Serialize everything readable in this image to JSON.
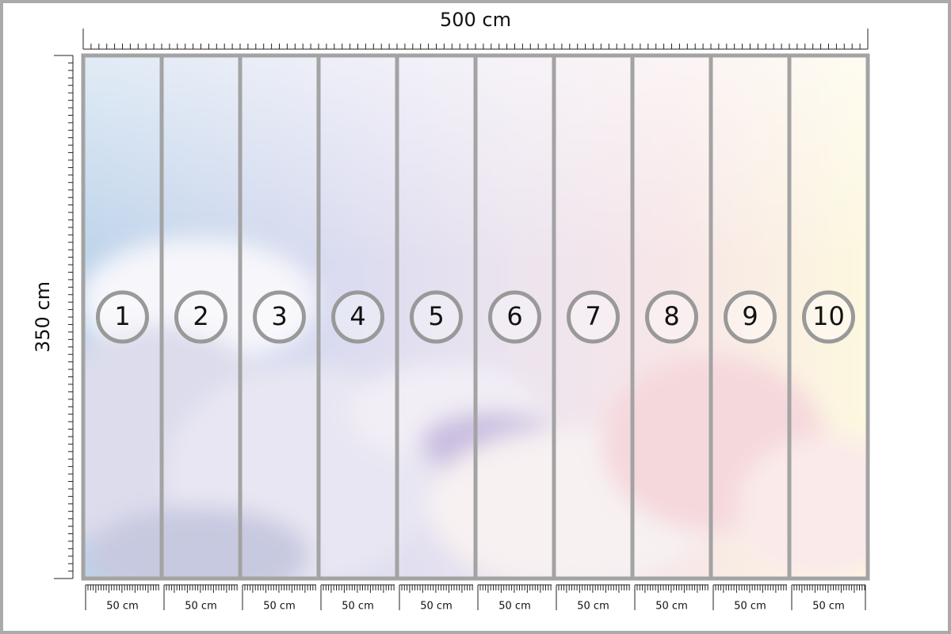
{
  "width_label": "500 cm",
  "height_label": "350 cm",
  "panels": [
    {
      "number": "1",
      "width": "50 cm"
    },
    {
      "number": "2",
      "width": "50 cm"
    },
    {
      "number": "3",
      "width": "50 cm"
    },
    {
      "number": "4",
      "width": "50 cm"
    },
    {
      "number": "5",
      "width": "50 cm"
    },
    {
      "number": "6",
      "width": "50 cm"
    },
    {
      "number": "7",
      "width": "50 cm"
    },
    {
      "number": "8",
      "width": "50 cm"
    },
    {
      "number": "9",
      "width": "50 cm"
    },
    {
      "number": "10",
      "width": "50 cm"
    }
  ]
}
